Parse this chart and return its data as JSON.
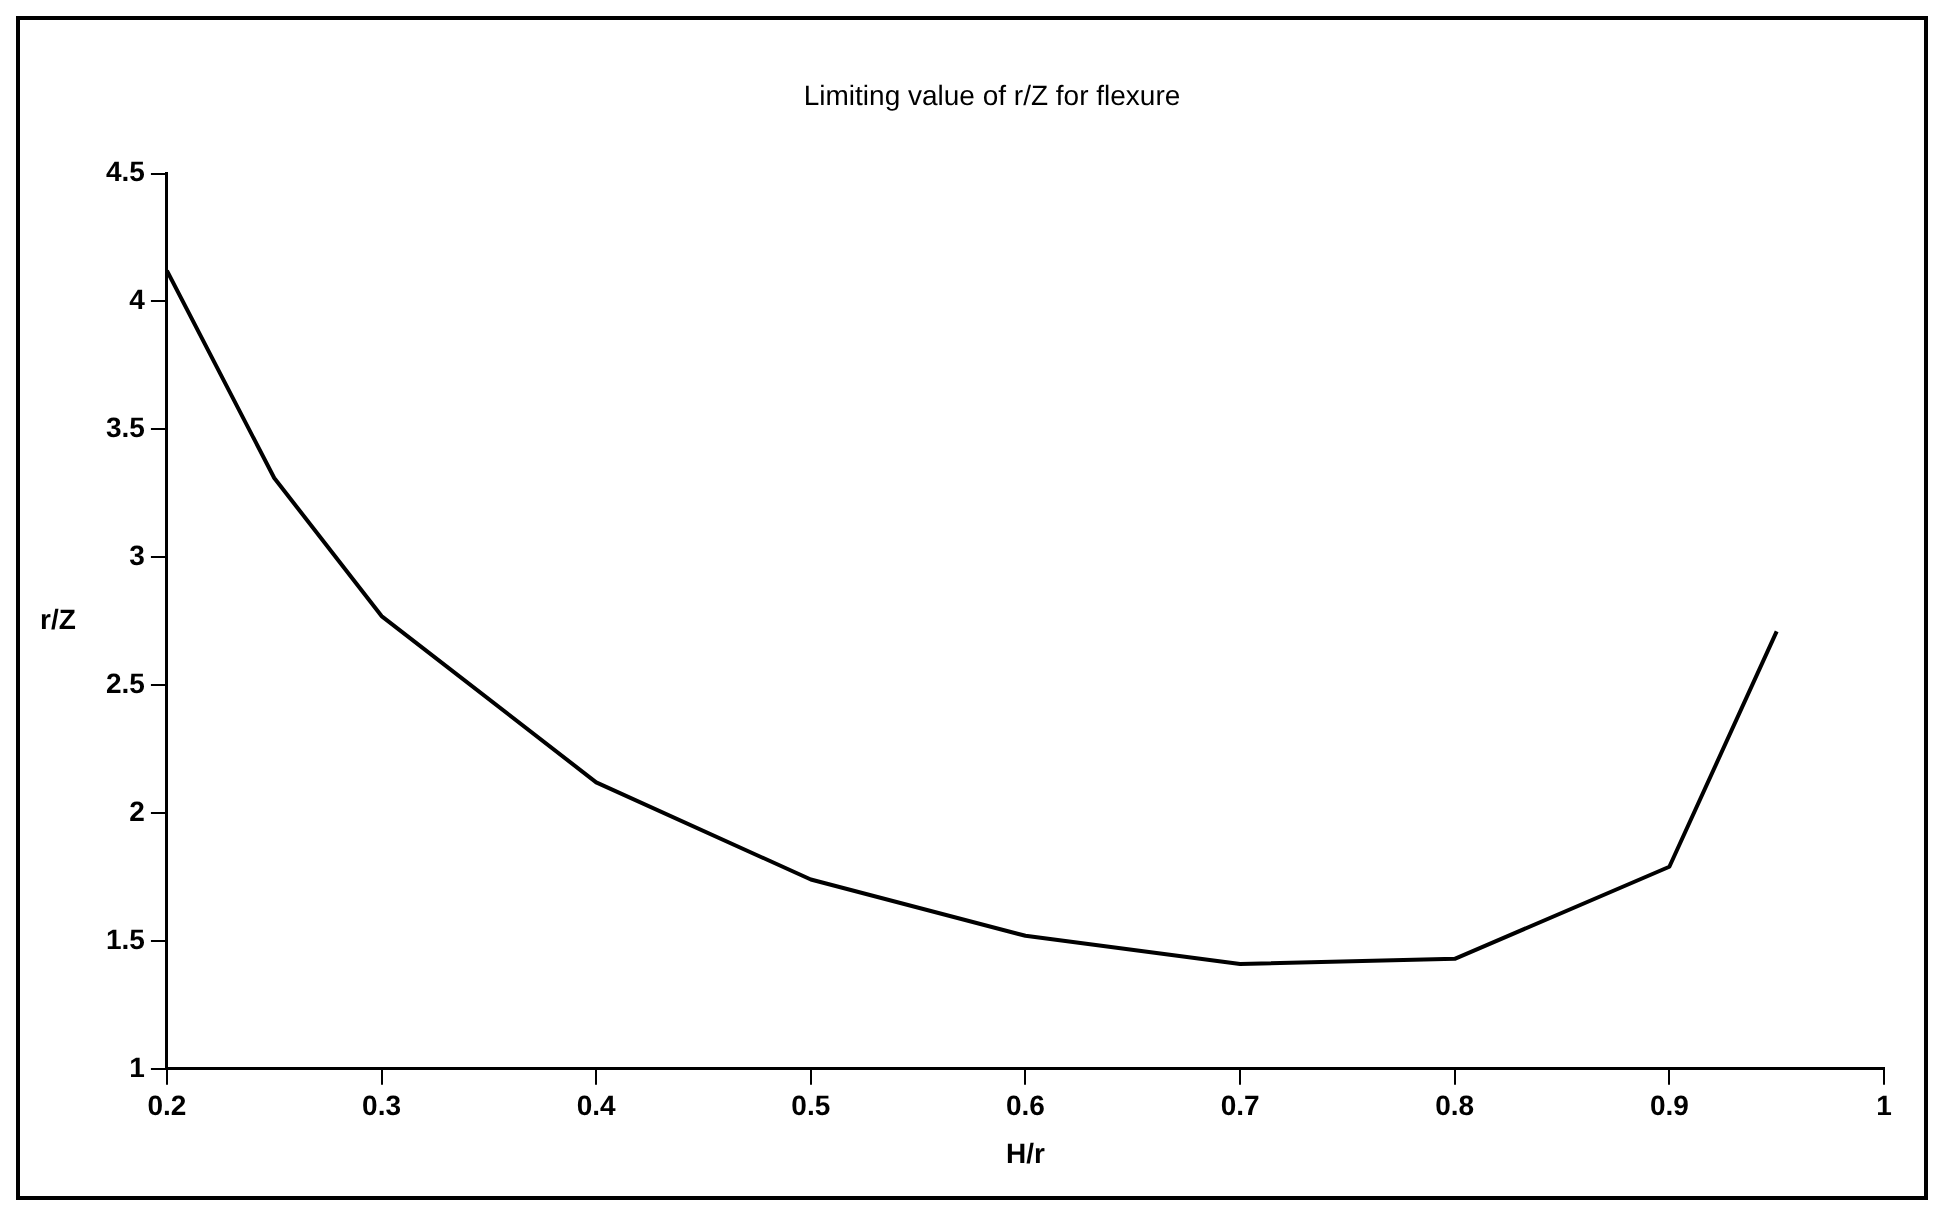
{
  "chart_data": {
    "type": "line",
    "title": "Limiting value of r/Z for flexure",
    "xlabel": "H/r",
    "ylabel": "r/Z",
    "x": [
      0.2,
      0.25,
      0.3,
      0.4,
      0.5,
      0.6,
      0.7,
      0.8,
      0.9,
      0.95
    ],
    "series": [
      {
        "color": "#000000",
        "values": [
          4.12,
          3.31,
          2.77,
          2.12,
          1.74,
          1.52,
          1.41,
          1.43,
          1.79,
          2.71
        ]
      }
    ],
    "xlim": [
      0.2,
      1
    ],
    "xticks": [
      0.2,
      0.3,
      0.4,
      0.5,
      0.6,
      0.7,
      0.8,
      0.9,
      1
    ],
    "ylim": [
      1,
      4.5
    ],
    "yticks": [
      1,
      1.5,
      2,
      2.5,
      3,
      3.5,
      4,
      4.5
    ],
    "grid": false,
    "legend": false,
    "marker": "none",
    "line_style": "solid"
  }
}
